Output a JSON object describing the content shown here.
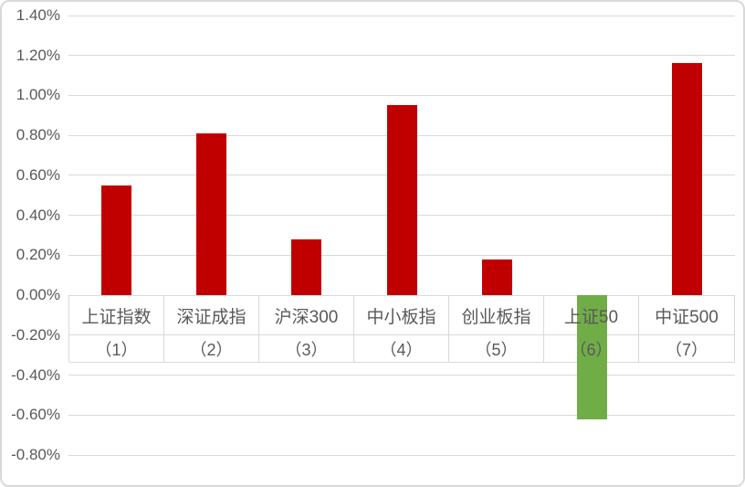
{
  "chart_data": {
    "type": "bar",
    "title": "",
    "xlabel": "",
    "ylabel": "",
    "categories": [
      "上证指数",
      "深证成指",
      "沪深300",
      "中小板指",
      "创业板指",
      "上证50",
      "中证500"
    ],
    "category_numbers": [
      "（1）",
      "（2）",
      "（3）",
      "（4）",
      "（5）",
      "（6）",
      "（7）"
    ],
    "values": [
      0.55,
      0.81,
      0.28,
      0.95,
      0.18,
      -0.62,
      1.16
    ],
    "unit": "%",
    "y_tick_labels": [
      "1.40%",
      "1.20%",
      "1.00%",
      "0.80%",
      "0.60%",
      "0.40%",
      "0.20%",
      "0.00%",
      "-0.20%",
      "-0.40%",
      "-0.60%",
      "-0.80%"
    ],
    "ylim": [
      -0.8,
      1.4
    ],
    "ytick_step": 0.2,
    "grid": true,
    "legend": "none",
    "colors": {
      "positive_bar": "#c00000",
      "negative_bar": "#70ad47",
      "gridline": "#d9d9d9",
      "table_border": "#d9d9d9",
      "axis_text": "#595959",
      "chart_border": "#d9d9d9",
      "background": "#ffffff"
    }
  }
}
